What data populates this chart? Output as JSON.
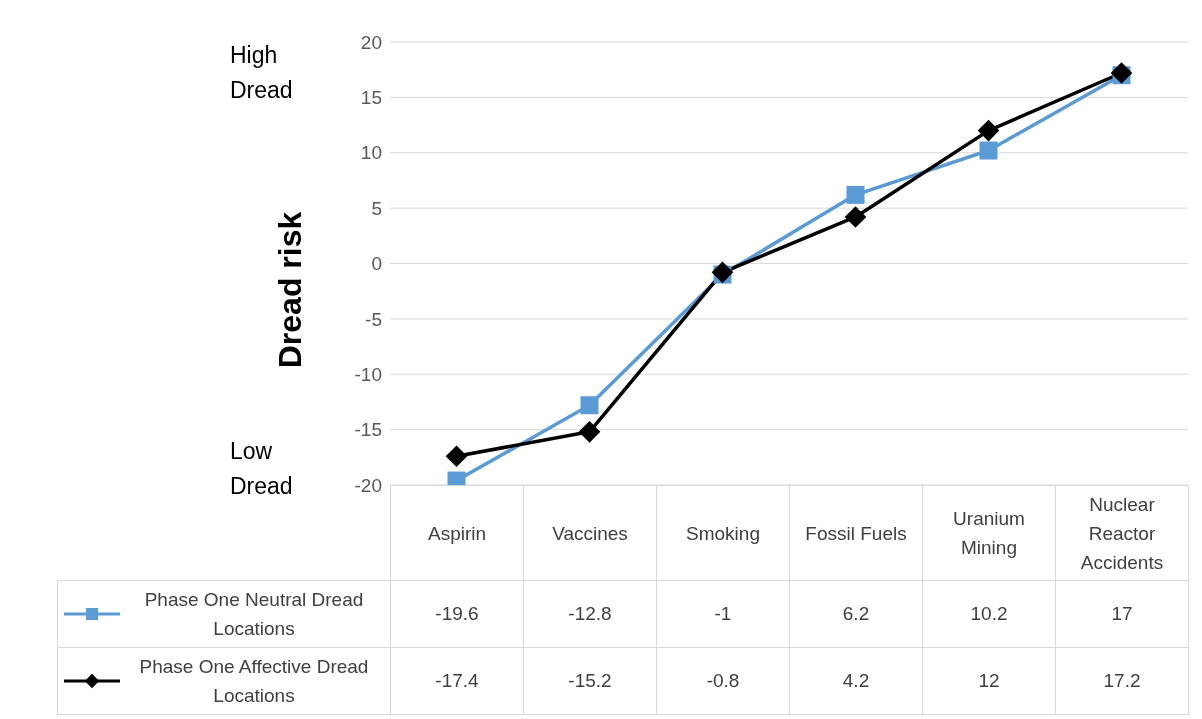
{
  "chart_data": {
    "type": "line",
    "ylabel": "Dread risk",
    "annotations": [
      "High Dread",
      "Low Dread"
    ],
    "categories": [
      "Aspirin",
      "Vaccines",
      "Smoking",
      "Fossil Fuels",
      "Uranium Mining",
      "Nuclear Reactor Accidents"
    ],
    "series": [
      {
        "name": "Phase One Neutral Dread Locations",
        "color": "#5b9bd5",
        "marker": "square",
        "values": [
          -19.6,
          -12.8,
          -1,
          6.2,
          10.2,
          17
        ]
      },
      {
        "name": "Phase One Affective Dread Locations",
        "color": "#000000",
        "marker": "diamond",
        "values": [
          -17.4,
          -15.2,
          -0.8,
          4.2,
          12,
          17.2
        ]
      }
    ],
    "ylim": [
      -20,
      20
    ],
    "yticks": [
      -20,
      -15,
      -10,
      -5,
      0,
      5,
      10,
      15,
      20
    ],
    "grid": "y",
    "legend": "bottom",
    "data_labels": true
  }
}
